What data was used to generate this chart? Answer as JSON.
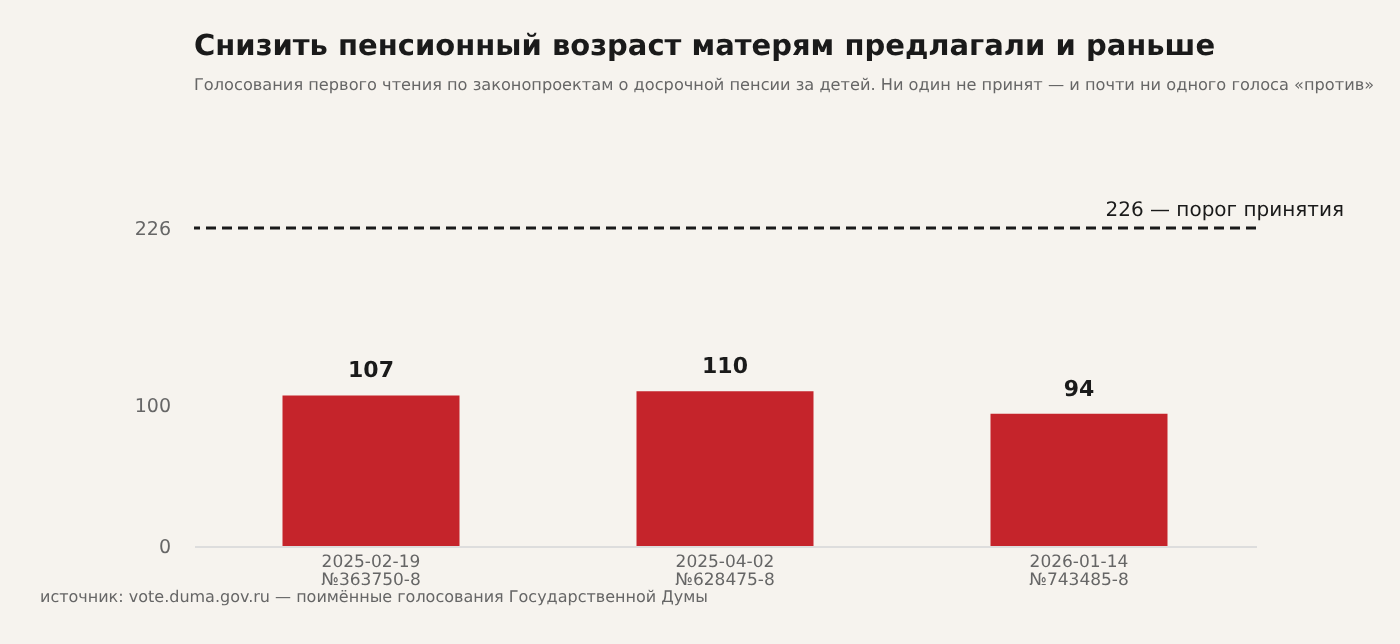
{
  "chart_data": {
    "type": "bar",
    "title": "Снизить пенсионный возраст матерям предлагали и раньше",
    "subtitle": "Голосования первого чтения по законопроектам о досрочной пенсии за детей. Ни один не принят — и почти ни одного голоса «против»",
    "categories": [
      "2025-02-19\n№363750-8",
      "2025-04-02\n№628475-8",
      "2026-01-14\n№743485-8"
    ],
    "values": [
      107,
      110,
      94
    ],
    "color": "#c5242b",
    "data_labels": true,
    "ylim": [
      0,
      226
    ],
    "yticks": [
      0,
      100,
      226
    ],
    "grid": false,
    "ref_lines": [
      {
        "axis": "y",
        "value": 226,
        "label": "226 — порог принятия",
        "color": "#1a1a1a",
        "line_style": "dashed"
      }
    ],
    "annotations": [
      "источник: vote.duma.gov.ru — поимённые голосования Государственной Думы"
    ]
  }
}
